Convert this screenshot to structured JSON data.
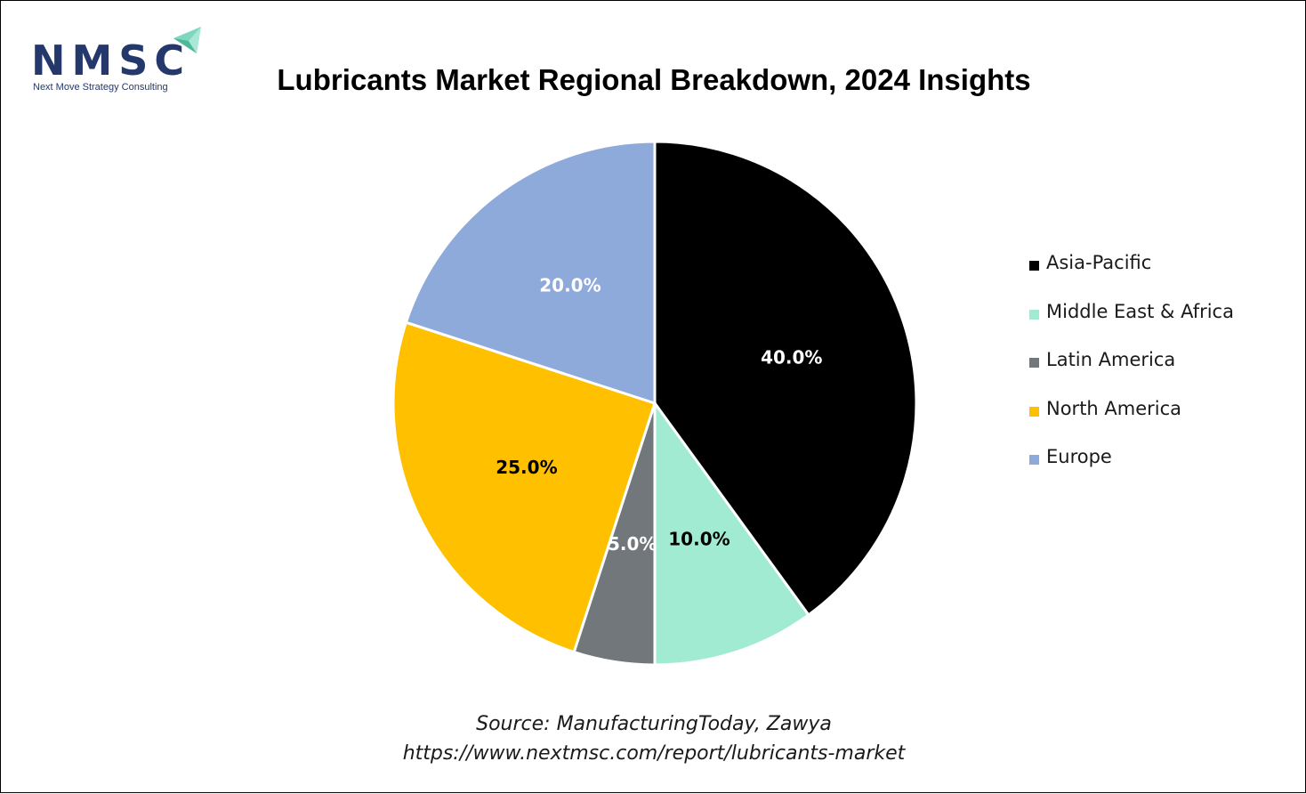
{
  "logo": {
    "name": "NMSC",
    "tagline": "Next Move Strategy Consulting"
  },
  "colors": {
    "brand_navy": "#25386b",
    "brand_mint": "#7fd8be"
  },
  "chart_data": {
    "type": "pie",
    "title": "Lubricants Market Regional Breakdown, 2024 Insights",
    "categories": [
      "Asia-Pacific",
      "Middle East & Africa",
      "Latin America",
      "North America",
      "Europe"
    ],
    "values": [
      40.0,
      10.0,
      5.0,
      25.0,
      20.0
    ],
    "data_labels": [
      "40.0%",
      "10.0%",
      "5.0%",
      "25.0%",
      "20.0%"
    ],
    "colors": [
      "#000000",
      "#a1ebd3",
      "#72777c",
      "#ffc000",
      "#8eaadb"
    ],
    "label_colors": [
      "#ffffff",
      "#000000",
      "#ffffff",
      "#000000",
      "#ffffff"
    ],
    "legend_position": "right",
    "start_angle": "12 o'clock",
    "direction": "clockwise"
  },
  "source": {
    "line1": "Source: ManufacturingToday, Zawya",
    "line2": "https://www.nextmsc.com/report/lubricants-market"
  }
}
